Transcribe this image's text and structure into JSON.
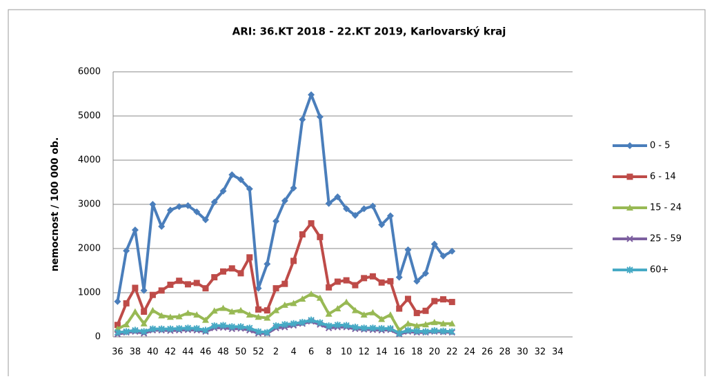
{
  "chart_data": {
    "type": "line",
    "title": "ARI: 36.KT 2018 - 22.KT 2019, Karlovarský kraj",
    "y_label": "nemocnost / 100 000 ob.",
    "categories": [
      36,
      null,
      38,
      null,
      40,
      null,
      42,
      null,
      44,
      null,
      46,
      null,
      48,
      null,
      50,
      null,
      52,
      null,
      2,
      null,
      4,
      null,
      6,
      null,
      8,
      null,
      10,
      null,
      12,
      null,
      14,
      null,
      16,
      null,
      18,
      null,
      20,
      null,
      22,
      null,
      24,
      null,
      26,
      null,
      28,
      null,
      30,
      null,
      32,
      null,
      34
    ],
    "ylim": [
      0,
      6000
    ],
    "yticks": [
      0,
      1000,
      2000,
      3000,
      4000,
      5000,
      6000
    ],
    "grid": true,
    "legend": "right",
    "series": [
      {
        "name": "0 - 5",
        "color": "#4a7ebb",
        "marker": "diamond",
        "values": [
          800,
          1950,
          2420,
          1050,
          3000,
          2500,
          2870,
          2950,
          2970,
          2830,
          2650,
          3050,
          3300,
          3670,
          3560,
          3350,
          1100,
          1650,
          2620,
          3080,
          3370,
          4920,
          5480,
          4980,
          3020,
          3170,
          2900,
          2750,
          2900,
          2960,
          2540,
          2740,
          1350,
          1970,
          1260,
          1440,
          2100,
          1830,
          1940,
          null,
          null,
          null,
          null,
          null,
          null,
          null,
          null,
          null,
          null,
          null,
          null
        ]
      },
      {
        "name": "6 - 14",
        "color": "#be4b48",
        "marker": "square",
        "values": [
          270,
          760,
          1110,
          570,
          950,
          1050,
          1180,
          1270,
          1190,
          1220,
          1100,
          1350,
          1480,
          1550,
          1440,
          1800,
          620,
          600,
          1100,
          1200,
          1720,
          2320,
          2570,
          2260,
          1120,
          1250,
          1280,
          1170,
          1330,
          1370,
          1230,
          1260,
          640,
          860,
          540,
          590,
          810,
          850,
          790,
          null,
          null,
          null,
          null,
          null,
          null,
          null,
          null,
          null,
          null,
          null,
          null
        ]
      },
      {
        "name": "15 - 24",
        "color": "#98b954",
        "marker": "triangle",
        "values": [
          180,
          280,
          570,
          300,
          600,
          480,
          450,
          460,
          540,
          500,
          380,
          590,
          650,
          570,
          600,
          500,
          450,
          430,
          600,
          720,
          760,
          860,
          970,
          880,
          520,
          640,
          790,
          600,
          500,
          550,
          400,
          500,
          150,
          300,
          250,
          280,
          330,
          300,
          300,
          null,
          null,
          null,
          null,
          null,
          null,
          null,
          null,
          null,
          null,
          null,
          null
        ]
      },
      {
        "name": "25 - 59",
        "color": "#7d60a0",
        "marker": "x",
        "values": [
          60,
          100,
          120,
          80,
          150,
          150,
          140,
          150,
          160,
          150,
          120,
          200,
          210,
          180,
          190,
          150,
          80,
          80,
          200,
          220,
          260,
          300,
          350,
          280,
          200,
          220,
          220,
          180,
          170,
          160,
          150,
          160,
          60,
          120,
          100,
          100,
          120,
          110,
          100,
          null,
          null,
          null,
          null,
          null,
          null,
          null,
          null,
          null,
          null,
          null,
          null
        ]
      },
      {
        "name": "60+",
        "color": "#46aac5",
        "marker": "star",
        "values": [
          100,
          120,
          150,
          120,
          180,
          180,
          180,
          190,
          200,
          190,
          150,
          250,
          260,
          230,
          230,
          200,
          120,
          100,
          250,
          280,
          300,
          330,
          380,
          320,
          250,
          270,
          260,
          220,
          200,
          200,
          190,
          190,
          80,
          150,
          130,
          120,
          140,
          130,
          120,
          null,
          null,
          null,
          null,
          null,
          null,
          null,
          null,
          null,
          null,
          null,
          null
        ]
      }
    ]
  }
}
